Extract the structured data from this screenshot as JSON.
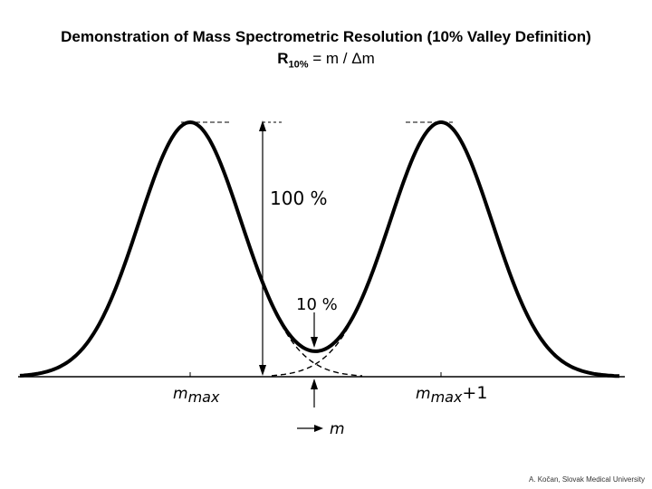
{
  "title": "Demonstration of Mass Spectrometric Resolution (10% Valley Definition)",
  "formula": {
    "r_symbol": "R",
    "r_subscript": "10%",
    "rhs": "= m / Δm"
  },
  "labels": {
    "peak_height": "100 %",
    "valley_depth": "10 %",
    "m_prefix": "m",
    "m_max_subscript": "max",
    "m_max_plus_1_subscript": "max",
    "plus_one": "+1",
    "axis_label": "m"
  },
  "credit": "A. Kočan, Slovak Medical University",
  "colors": {
    "curve": "#000000",
    "background": "#ffffff"
  },
  "peaks": [
    {
      "name": "m max",
      "relative_height_percent": 100
    },
    {
      "name": "m max +1",
      "relative_height_percent": 100
    }
  ],
  "valley_percent": 10
}
